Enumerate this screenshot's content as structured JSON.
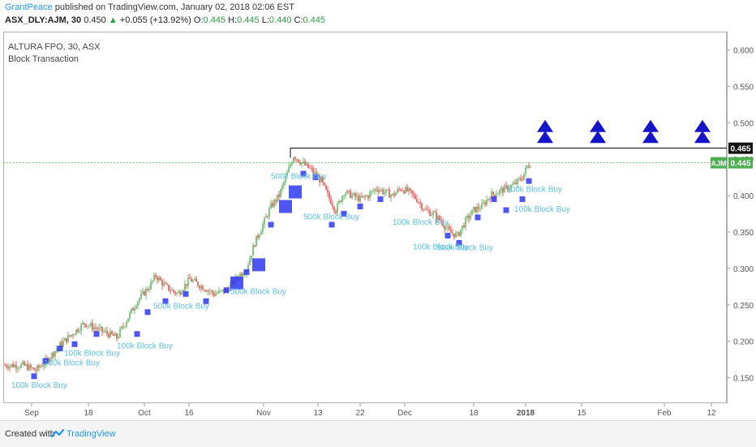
{
  "header": {
    "publisher": "GrantPeace",
    "published_text": "published on TradingView.com, January 02, 2018 02:06 EST",
    "symbol": "ASX_DLY:AJM, 30",
    "last": "0.450",
    "change_arrow": "▲",
    "change": "+0.055 (+13.92%)",
    "o_label": "O:",
    "o": "0.445",
    "h_label": "H:",
    "h": "0.445",
    "l_label": "L:",
    "l": "0.440",
    "c_label": "C:",
    "c": "0.445"
  },
  "legend": {
    "instrument": "ALTURA FPO, 30, ASX",
    "indicator": "Block Transaction"
  },
  "footer": {
    "created_with": "Created with",
    "brand": "TradingView",
    "logo_icon": "tradingview-logo-icon"
  },
  "colors": {
    "candle_up": "#4caf50",
    "candle_down": "#e53935",
    "block_marker": "#2f38f0",
    "block_text": "#5bc0de",
    "price_line": "#4caf50",
    "triangle": "#1414c8",
    "resistance": "#000000"
  },
  "chart_data": {
    "type": "candlestick",
    "title": "ALTURA FPO, 30, ASX",
    "ylim": [
      0.115,
      0.625
    ],
    "y_ticks": [
      0.15,
      0.2,
      0.25,
      0.3,
      0.35,
      0.4,
      0.45,
      0.5,
      0.55,
      0.6
    ],
    "x_ticks": [
      "Sep",
      "18",
      "Oct",
      "16",
      "Nov",
      "13",
      "22",
      "Dec",
      "18",
      "2018",
      "15",
      "Feb",
      "12"
    ],
    "price_tags": [
      {
        "label": "",
        "value": "0.465",
        "y": 0.465
      },
      {
        "label": "AJM",
        "value": "0.445",
        "y": 0.445
      }
    ],
    "resistance_level": 0.465,
    "current_price": 0.445,
    "price_path": [
      [
        0,
        0.167
      ],
      [
        25,
        0.167
      ],
      [
        40,
        0.16
      ],
      [
        55,
        0.175
      ],
      [
        70,
        0.195
      ],
      [
        85,
        0.21
      ],
      [
        100,
        0.225
      ],
      [
        120,
        0.215
      ],
      [
        140,
        0.205
      ],
      [
        150,
        0.225
      ],
      [
        165,
        0.255
      ],
      [
        180,
        0.275
      ],
      [
        188,
        0.29
      ],
      [
        200,
        0.275
      ],
      [
        215,
        0.265
      ],
      [
        230,
        0.285
      ],
      [
        245,
        0.275
      ],
      [
        260,
        0.265
      ],
      [
        275,
        0.27
      ],
      [
        290,
        0.29
      ],
      [
        300,
        0.3
      ],
      [
        310,
        0.335
      ],
      [
        320,
        0.36
      ],
      [
        330,
        0.385
      ],
      [
        340,
        0.4
      ],
      [
        350,
        0.43
      ],
      [
        358,
        0.455
      ],
      [
        368,
        0.445
      ],
      [
        380,
        0.435
      ],
      [
        392,
        0.42
      ],
      [
        400,
        0.4
      ],
      [
        410,
        0.38
      ],
      [
        420,
        0.405
      ],
      [
        430,
        0.4
      ],
      [
        440,
        0.395
      ],
      [
        450,
        0.4
      ],
      [
        460,
        0.41
      ],
      [
        470,
        0.405
      ],
      [
        480,
        0.4
      ],
      [
        490,
        0.41
      ],
      [
        500,
        0.405
      ],
      [
        510,
        0.395
      ],
      [
        520,
        0.38
      ],
      [
        530,
        0.375
      ],
      [
        540,
        0.365
      ],
      [
        550,
        0.35
      ],
      [
        560,
        0.345
      ],
      [
        570,
        0.365
      ],
      [
        580,
        0.38
      ],
      [
        590,
        0.385
      ],
      [
        600,
        0.4
      ],
      [
        610,
        0.405
      ],
      [
        620,
        0.41
      ],
      [
        630,
        0.415
      ],
      [
        640,
        0.425
      ],
      [
        646,
        0.44
      ],
      [
        651,
        0.445
      ]
    ],
    "block_markers": [
      {
        "x": 38,
        "y": 0.152,
        "size": "small"
      },
      {
        "x": 52,
        "y": 0.173,
        "size": "small"
      },
      {
        "x": 70,
        "y": 0.19,
        "size": "small"
      },
      {
        "x": 88,
        "y": 0.196,
        "size": "small"
      },
      {
        "x": 115,
        "y": 0.21,
        "size": "small"
      },
      {
        "x": 165,
        "y": 0.21,
        "size": "small"
      },
      {
        "x": 178,
        "y": 0.24,
        "size": "small"
      },
      {
        "x": 200,
        "y": 0.255,
        "size": "small"
      },
      {
        "x": 225,
        "y": 0.265,
        "size": "small"
      },
      {
        "x": 250,
        "y": 0.255,
        "size": "small"
      },
      {
        "x": 275,
        "y": 0.27,
        "size": "small"
      },
      {
        "x": 288,
        "y": 0.28,
        "size": "large"
      },
      {
        "x": 300,
        "y": 0.295,
        "size": "small"
      },
      {
        "x": 315,
        "y": 0.305,
        "size": "large"
      },
      {
        "x": 330,
        "y": 0.36,
        "size": "small"
      },
      {
        "x": 348,
        "y": 0.385,
        "size": "large"
      },
      {
        "x": 360,
        "y": 0.405,
        "size": "large"
      },
      {
        "x": 370,
        "y": 0.43,
        "size": "small"
      },
      {
        "x": 385,
        "y": 0.425,
        "size": "small"
      },
      {
        "x": 405,
        "y": 0.36,
        "size": "small"
      },
      {
        "x": 420,
        "y": 0.375,
        "size": "small"
      },
      {
        "x": 440,
        "y": 0.385,
        "size": "small"
      },
      {
        "x": 465,
        "y": 0.395,
        "size": "small"
      },
      {
        "x": 548,
        "y": 0.345,
        "size": "small"
      },
      {
        "x": 562,
        "y": 0.335,
        "size": "small"
      },
      {
        "x": 585,
        "y": 0.37,
        "size": "small"
      },
      {
        "x": 605,
        "y": 0.395,
        "size": "small"
      },
      {
        "x": 620,
        "y": 0.38,
        "size": "small"
      },
      {
        "x": 640,
        "y": 0.395,
        "size": "small"
      },
      {
        "x": 648,
        "y": 0.42,
        "size": "small"
      }
    ],
    "block_labels": [
      {
        "text": "100k Block Buy",
        "x": 10,
        "y": 0.136
      },
      {
        "text": "100k Block Buy",
        "x": 50,
        "y": 0.167
      },
      {
        "text": "100k Block Buy",
        "x": 75,
        "y": 0.18
      },
      {
        "text": "100k Block Buy",
        "x": 140,
        "y": 0.19
      },
      {
        "text": "500k Block Buy",
        "x": 185,
        "y": 0.245
      },
      {
        "text": "500k Block Buy",
        "x": 280,
        "y": 0.265
      },
      {
        "text": "500k Block Buy",
        "x": 330,
        "y": 0.423
      },
      {
        "text": "500k Block Buy",
        "x": 370,
        "y": 0.367
      },
      {
        "text": "100k Block Buy",
        "x": 480,
        "y": 0.36
      },
      {
        "text": "100k Block Buy",
        "x": 505,
        "y": 0.326
      },
      {
        "text": "500k Block Buy",
        "x": 535,
        "y": 0.325
      },
      {
        "text": "500k Block Buy",
        "x": 620,
        "y": 0.405
      },
      {
        "text": "100k Block Buy",
        "x": 630,
        "y": 0.378
      }
    ],
    "signal_triangles_x": [
      668,
      733,
      798,
      862
    ],
    "signal_triangles_y": [
      0.495,
      0.48
    ]
  }
}
